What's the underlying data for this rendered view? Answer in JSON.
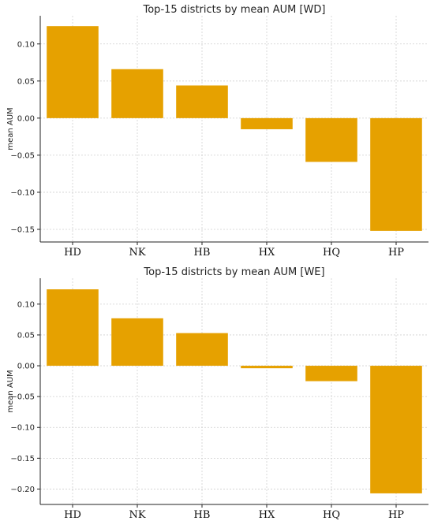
{
  "chart_data": [
    {
      "type": "bar",
      "title": "Top-15 districts by mean AUM [WD]",
      "xlabel": "",
      "ylabel": "mean AUM",
      "categories": [
        "HD",
        "NK",
        "HB",
        "HX",
        "HQ",
        "HP"
      ],
      "values": [
        0.124,
        0.066,
        0.044,
        -0.015,
        -0.059,
        -0.152
      ],
      "ylim": [
        -0.167,
        0.138
      ],
      "yticks": [
        0.1,
        0.05,
        0.0,
        -0.05,
        -0.1,
        -0.15
      ],
      "ytick_labels": [
        "0.10",
        "0.05",
        "0.00",
        "−0.05",
        "−0.10",
        "−0.15"
      ],
      "grid": true,
      "color": "#e6a100"
    },
    {
      "type": "bar",
      "title": "Top-15 districts by mean AUM [WE]",
      "xlabel": "",
      "ylabel": "mean AUM",
      "categories": [
        "HD",
        "NK",
        "HB",
        "HX",
        "HQ",
        "HP"
      ],
      "values": [
        0.124,
        0.077,
        0.053,
        -0.004,
        -0.025,
        -0.207
      ],
      "ylim": [
        -0.225,
        0.142
      ],
      "yticks": [
        0.1,
        0.05,
        0.0,
        -0.05,
        -0.1,
        -0.15,
        -0.2
      ],
      "ytick_labels": [
        "0.10",
        "0.05",
        "0.00",
        "−0.05",
        "−0.10",
        "−0.15",
        "−0.20"
      ],
      "grid": true,
      "color": "#e6a100"
    }
  ]
}
